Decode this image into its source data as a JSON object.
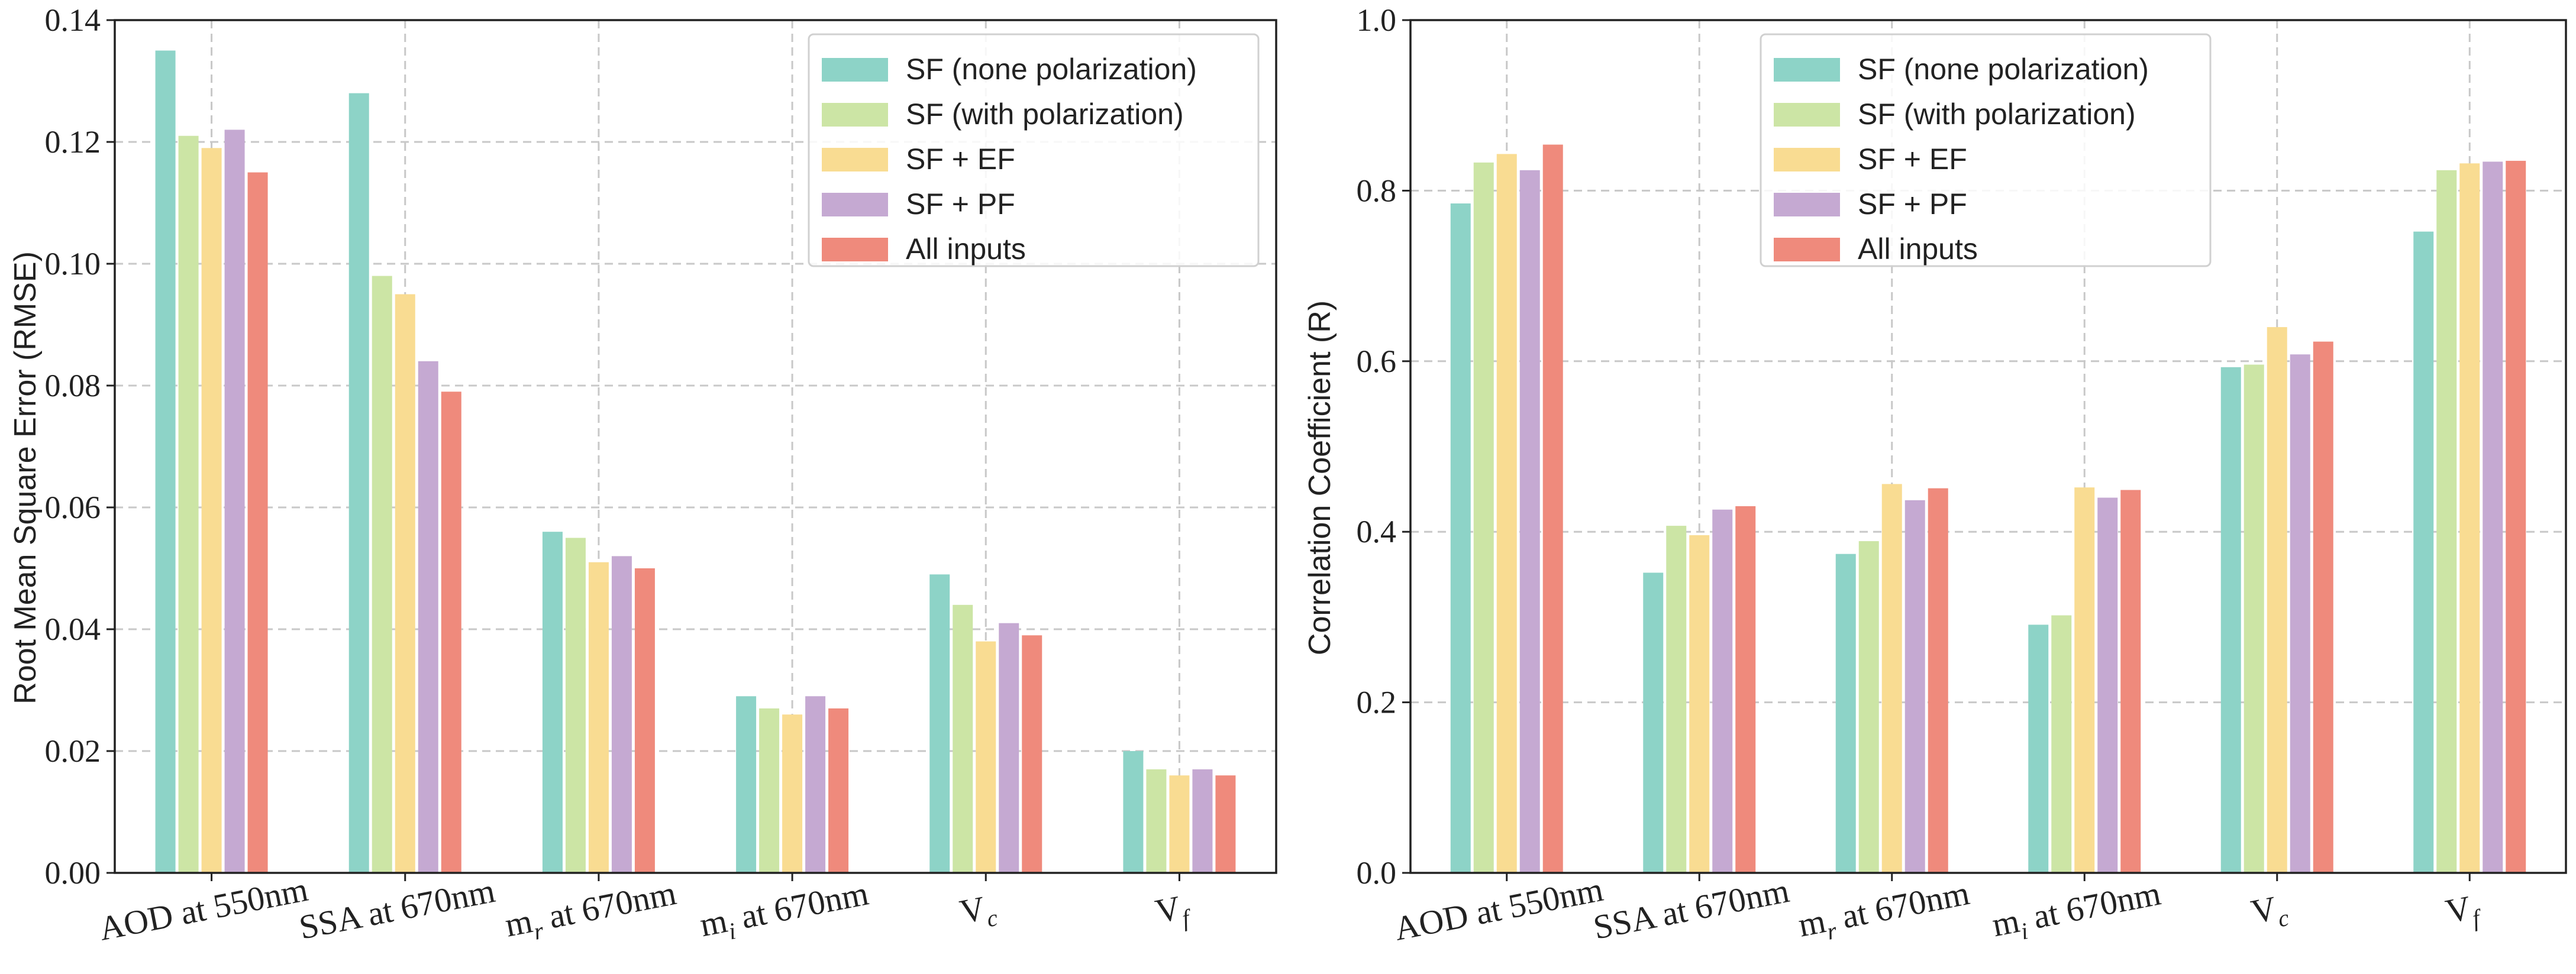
{
  "legend_labels": [
    "SF (none polarization)",
    "SF (with polarization)",
    "SF + EF",
    "SF + PF",
    "All inputs"
  ],
  "series_colors": [
    "#8dd3c7",
    "#cce5a5",
    "#f9dc92",
    "#c5a9d2",
    "#ef8a7c"
  ],
  "colors": {
    "axis": "#222222",
    "grid": "#c8c8c8",
    "legend_border": "#d0d0d0"
  },
  "chart_data": [
    {
      "type": "bar",
      "title": "",
      "xlabel": "",
      "ylabel": "Root Mean Square Error (RMSE)",
      "ylim": [
        0,
        0.14
      ],
      "yticks": [
        "0.00",
        "0.02",
        "0.04",
        "0.06",
        "0.08",
        "0.10",
        "0.12",
        "0.14"
      ],
      "grid": true,
      "legend_position": "top-right",
      "categories": [
        {
          "base": "AOD at 550nm",
          "sub": "",
          "rest": ""
        },
        {
          "base": "SSA at 670nm",
          "sub": "",
          "rest": ""
        },
        {
          "base": "m",
          "sub": "r",
          "rest": " at 670nm"
        },
        {
          "base": "m",
          "sub": "i",
          "rest": " at 670nm"
        },
        {
          "base": "V",
          "sub": "c",
          "rest": ""
        },
        {
          "base": "V",
          "sub": "f",
          "rest": ""
        }
      ],
      "series": [
        {
          "name": "SF (none polarization)",
          "values": [
            0.135,
            0.128,
            0.056,
            0.029,
            0.049,
            0.02
          ]
        },
        {
          "name": "SF (with polarization)",
          "values": [
            0.121,
            0.098,
            0.055,
            0.027,
            0.044,
            0.017
          ]
        },
        {
          "name": "SF + EF",
          "values": [
            0.119,
            0.095,
            0.051,
            0.026,
            0.038,
            0.016
          ]
        },
        {
          "name": "SF + PF",
          "values": [
            0.122,
            0.084,
            0.052,
            0.029,
            0.041,
            0.017
          ]
        },
        {
          "name": "All inputs",
          "values": [
            0.115,
            0.079,
            0.05,
            0.027,
            0.039,
            0.016
          ]
        }
      ]
    },
    {
      "type": "bar",
      "title": "",
      "xlabel": "",
      "ylabel": "Correlation Coefficient (R)",
      "ylim": [
        0,
        1.0
      ],
      "yticks": [
        "0.0",
        "0.2",
        "0.4",
        "0.6",
        "0.8",
        "1.0"
      ],
      "grid": true,
      "legend_position": "top-center",
      "categories": [
        {
          "base": "AOD at 550nm",
          "sub": "",
          "rest": ""
        },
        {
          "base": "SSA at 670nm",
          "sub": "",
          "rest": ""
        },
        {
          "base": "m",
          "sub": "r",
          "rest": " at 670nm"
        },
        {
          "base": "m",
          "sub": "i",
          "rest": " at 670nm"
        },
        {
          "base": "V",
          "sub": "c",
          "rest": ""
        },
        {
          "base": "V",
          "sub": "f",
          "rest": ""
        }
      ],
      "series": [
        {
          "name": "SF (none polarization)",
          "values": [
            0.785,
            0.352,
            0.374,
            0.291,
            0.593,
            0.752
          ]
        },
        {
          "name": "SF (with polarization)",
          "values": [
            0.833,
            0.407,
            0.389,
            0.302,
            0.596,
            0.824
          ]
        },
        {
          "name": "SF + EF",
          "values": [
            0.843,
            0.396,
            0.456,
            0.452,
            0.64,
            0.832
          ]
        },
        {
          "name": "SF + PF",
          "values": [
            0.824,
            0.426,
            0.437,
            0.44,
            0.608,
            0.834
          ]
        },
        {
          "name": "All inputs",
          "values": [
            0.854,
            0.43,
            0.451,
            0.449,
            0.623,
            0.835
          ]
        }
      ]
    }
  ]
}
